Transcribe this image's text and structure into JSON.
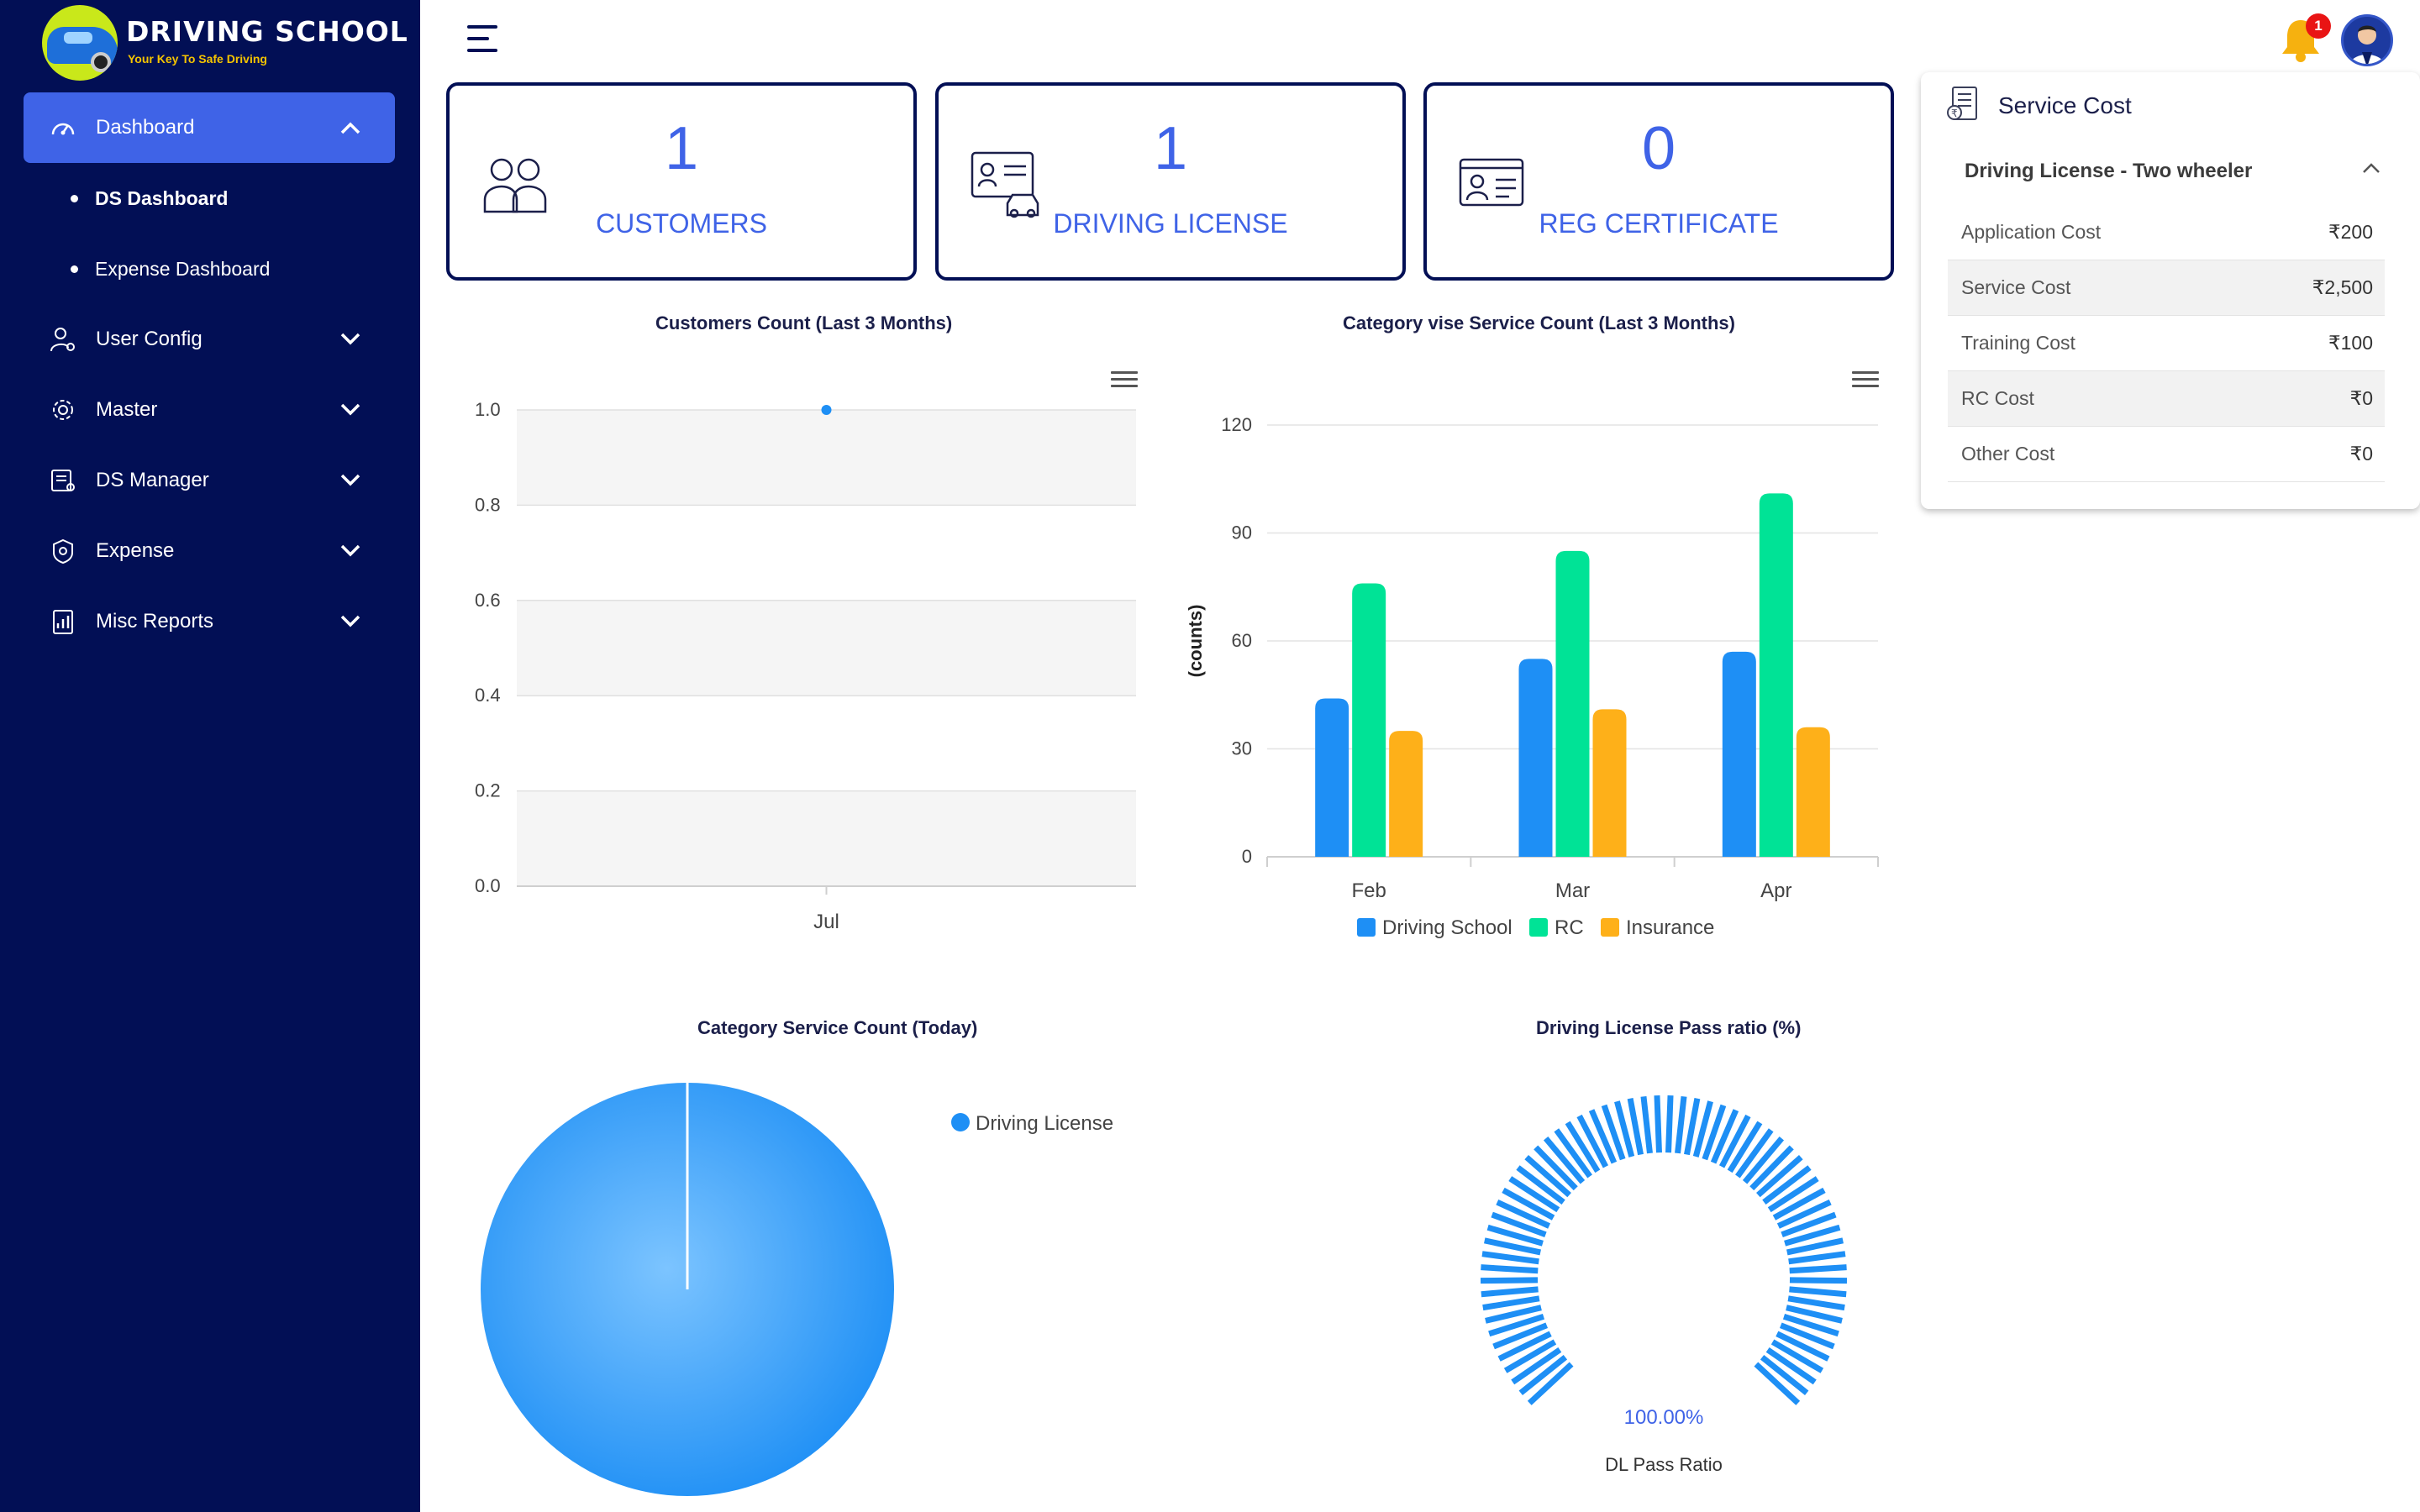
{
  "brand": {
    "title": "DRIVING SCHOOL",
    "tagline": "Your Key To Safe Driving"
  },
  "sidebar": {
    "dashboard": {
      "label": "Dashboard",
      "subitems": [
        "DS Dashboard",
        "Expense Dashboard"
      ]
    },
    "items": [
      {
        "label": "User Config",
        "icon": "user-gear-icon"
      },
      {
        "label": "Master",
        "icon": "gear-icon"
      },
      {
        "label": "DS Manager",
        "icon": "id-card-icon"
      },
      {
        "label": "Expense",
        "icon": "badge-icon"
      },
      {
        "label": "Misc Reports",
        "icon": "report-icon"
      }
    ]
  },
  "header": {
    "notification_count": "1"
  },
  "stats": [
    {
      "value": "1",
      "label": "CUSTOMERS",
      "icon": "customers-icon"
    },
    {
      "value": "1",
      "label": "DRIVING LICENSE",
      "icon": "license-icon"
    },
    {
      "value": "0",
      "label": "REG CERTIFICATE",
      "icon": "certificate-icon"
    }
  ],
  "service_cost": {
    "title": "Service Cost",
    "category": "Driving License - Two wheeler",
    "rows": [
      {
        "label": "Application Cost",
        "value": "₹200"
      },
      {
        "label": "Service Cost",
        "value": "₹2,500"
      },
      {
        "label": "Training Cost",
        "value": "₹100"
      },
      {
        "label": "RC Cost",
        "value": "₹0"
      },
      {
        "label": "Other Cost",
        "value": "₹0"
      }
    ]
  },
  "colors": {
    "sidebar": "#020f55",
    "accent": "#3f63e7",
    "blue": "#1e8ff5",
    "green": "#00e396",
    "orange": "#feb019"
  },
  "chart_data": [
    {
      "type": "line",
      "title": "Customers Count (Last 3 Months)",
      "categories": [
        "Jul"
      ],
      "series": [
        {
          "values": [
            1
          ]
        }
      ],
      "ylim": [
        0,
        1
      ],
      "yticks": [
        "1.0",
        "0.8",
        "0.6",
        "0.4",
        "0.2",
        "0.0"
      ],
      "grid": true
    },
    {
      "type": "bar",
      "title": "Category vise Service Count (Last 3 Months)",
      "ylabel": "(counts)",
      "categories": [
        "Feb",
        "Mar",
        "Apr"
      ],
      "series": [
        {
          "name": "Driving School",
          "values": [
            44,
            55,
            57
          ]
        },
        {
          "name": "RC",
          "values": [
            76,
            85,
            101
          ]
        },
        {
          "name": "Insurance",
          "values": [
            35,
            41,
            36
          ]
        }
      ],
      "ylim": [
        0,
        120
      ],
      "yticks": [
        "120",
        "90",
        "60",
        "30",
        "0"
      ],
      "legend": "bottom"
    },
    {
      "type": "pie",
      "title": "Category Service Count (Today)",
      "labels": [
        "Driving License"
      ],
      "values": [
        1
      ],
      "legend": "right"
    },
    {
      "type": "gauge",
      "title": "Driving License Pass ratio (%)",
      "value": 100,
      "value_label": "100.00%",
      "label": "DL Pass Ratio"
    }
  ]
}
